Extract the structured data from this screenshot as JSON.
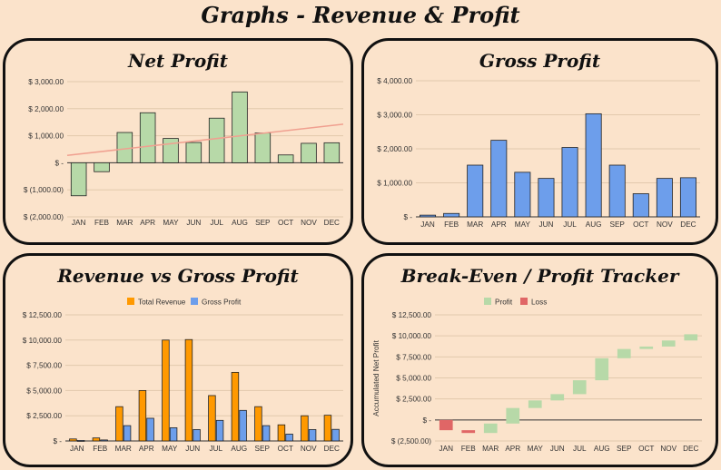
{
  "page_title": "Graphs - Revenue & Profit",
  "colors": {
    "background": "#fbe3cb",
    "net_profit_bar": "#b7d9a8",
    "trendline": "#f0a090",
    "gross_profit_bar": "#6d9eeb",
    "total_revenue_bar": "#ff9900",
    "profit_step": "#b7d9a8",
    "loss_step": "#e06666"
  },
  "chart_data": [
    {
      "id": "net",
      "type": "bar",
      "title": "Net Profit",
      "categories": [
        "JAN",
        "FEB",
        "MAR",
        "APR",
        "MAY",
        "JUN",
        "JUL",
        "AUG",
        "SEP",
        "OCT",
        "NOV",
        "DEC"
      ],
      "values": [
        -1220,
        -330,
        1120,
        1850,
        900,
        750,
        1650,
        2620,
        1100,
        290,
        720,
        740
      ],
      "trendline": true,
      "ylim": [
        -2000,
        3000
      ],
      "yticks": [
        -2000,
        -1000,
        0,
        1000,
        2000,
        3000
      ],
      "ytick_labels": [
        "$ (2,000.00)",
        "$ (1,000.00)",
        "$ -",
        "$ 1,000.00",
        "$ 2,000.00",
        "$ 3,000.00"
      ],
      "grid": true
    },
    {
      "id": "gross",
      "type": "bar",
      "title": "Gross Profit",
      "categories": [
        "JAN",
        "FEB",
        "MAR",
        "APR",
        "MAY",
        "JUN",
        "JUL",
        "AUG",
        "SEP",
        "OCT",
        "NOV",
        "DEC"
      ],
      "values": [
        50,
        100,
        1520,
        2250,
        1310,
        1130,
        2040,
        3030,
        1520,
        680,
        1130,
        1150
      ],
      "ylim": [
        0,
        4000
      ],
      "yticks": [
        0,
        1000,
        2000,
        3000,
        4000
      ],
      "ytick_labels": [
        "$ -",
        "$ 1,000.00",
        "$ 2,000.00",
        "$ 3,000.00",
        "$ 4,000.00"
      ],
      "grid": true
    },
    {
      "id": "rev",
      "type": "bar",
      "title": "Revenue vs Gross Profit",
      "categories": [
        "JAN",
        "FEB",
        "MAR",
        "APR",
        "MAY",
        "JUN",
        "JUL",
        "AUG",
        "SEP",
        "OCT",
        "NOV",
        "DEC"
      ],
      "series": [
        {
          "name": "Total Revenue",
          "values": [
            200,
            300,
            3400,
            5000,
            10000,
            10050,
            4500,
            6800,
            3400,
            1600,
            2500,
            2550
          ]
        },
        {
          "name": "Gross Profit",
          "values": [
            50,
            100,
            1520,
            2250,
            1310,
            1130,
            2040,
            3030,
            1520,
            680,
            1130,
            1150
          ]
        }
      ],
      "legend": "top-center",
      "ylim": [
        0,
        12500
      ],
      "yticks": [
        0,
        2500,
        5000,
        7500,
        10000,
        12500
      ],
      "ytick_labels": [
        "$ -",
        "$ 2,500.00",
        "$ 5,000.00",
        "$ 7,500.00",
        "$ 10,000.00",
        "$ 12,500.00"
      ],
      "grid": true
    },
    {
      "id": "be",
      "type": "waterfall",
      "title": "Break-Even / Profit Tracker",
      "categories": [
        "JAN",
        "FEB",
        "MAR",
        "APR",
        "MAY",
        "JUN",
        "JUL",
        "AUG",
        "SEP",
        "OCT",
        "NOV",
        "DEC"
      ],
      "values": [
        -1220,
        -330,
        1120,
        1850,
        900,
        750,
        1650,
        2620,
        1100,
        290,
        720,
        740
      ],
      "legend_entries": [
        "Profit",
        "Loss"
      ],
      "legend": "top-center",
      "ylabel": "Accumulated Net Profit",
      "ylim": [
        -2500,
        12500
      ],
      "yticks": [
        -2500,
        0,
        2500,
        5000,
        7500,
        10000,
        12500
      ],
      "ytick_labels": [
        "$ (2,500.00)",
        "$ -",
        "$ 2,500.00",
        "$ 5,000.00",
        "$ 7,500.00",
        "$ 10,000.00",
        "$ 12,500.00"
      ],
      "grid": true
    }
  ]
}
